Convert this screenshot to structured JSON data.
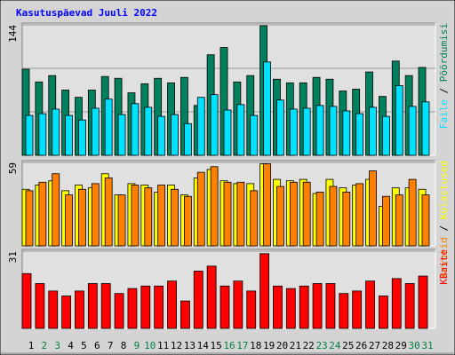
{
  "title": "Kasutuspäevad Juuli 2022",
  "chart_data": [
    {
      "type": "bar",
      "ylim": [
        0,
        144
      ],
      "yticks": [
        144
      ],
      "series": [
        {
          "name": "Pöördumisi",
          "color": "#00805c",
          "values": [
            95,
            81,
            88,
            72,
            64,
            72,
            87,
            85,
            69,
            79,
            85,
            80,
            86,
            55,
            111,
            119,
            81,
            88,
            143,
            84,
            80,
            80,
            86,
            84,
            71,
            73,
            92,
            65,
            104,
            88,
            97
          ]
        },
        {
          "name": "Faile",
          "color": "#00e0ff",
          "values": [
            44,
            46,
            51,
            44,
            39,
            52,
            62,
            45,
            57,
            53,
            43,
            45,
            35,
            64,
            67,
            50,
            56,
            44,
            103,
            61,
            51,
            52,
            55,
            54,
            49,
            46,
            53,
            43,
            77,
            54,
            59
          ]
        }
      ]
    },
    {
      "type": "bar",
      "ylim": [
        0,
        59
      ],
      "yticks": [
        59
      ],
      "series": [
        {
          "name": "Külastused",
          "color": "#ffff00",
          "values": [
            40,
            43,
            46,
            39,
            43,
            41,
            51,
            36,
            44,
            43,
            38,
            43,
            36,
            48,
            54,
            46,
            44,
            44,
            58,
            47,
            46,
            47,
            37,
            47,
            41,
            43,
            47,
            28,
            41,
            41,
            40
          ]
        },
        {
          "name": "Arvutid",
          "color": "#ff8000",
          "values": [
            39,
            45,
            51,
            36,
            40,
            44,
            48,
            36,
            43,
            41,
            43,
            40,
            35,
            52,
            56,
            45,
            45,
            39,
            58,
            42,
            45,
            45,
            38,
            42,
            38,
            44,
            53,
            35,
            36,
            47,
            36
          ]
        }
      ]
    },
    {
      "type": "bar",
      "ylim": [
        0,
        31
      ],
      "yticks": [
        31
      ],
      "categories": [
        "1",
        "2",
        "3",
        "4",
        "5",
        "6",
        "7",
        "8",
        "9",
        "10",
        "11",
        "12",
        "13",
        "14",
        "15",
        "16",
        "17",
        "18",
        "19",
        "20",
        "21",
        "22",
        "23",
        "24",
        "25",
        "26",
        "27",
        "28",
        "29",
        "30",
        "31"
      ],
      "weekend_color": "#008040",
      "weekend": [
        false,
        true,
        true,
        false,
        false,
        false,
        false,
        false,
        true,
        true,
        false,
        false,
        false,
        false,
        false,
        true,
        true,
        false,
        false,
        false,
        false,
        false,
        true,
        true,
        false,
        false,
        false,
        false,
        false,
        true,
        true
      ],
      "series": [
        {
          "name": "KBaite",
          "color": "#ff0000",
          "values": [
            22,
            18,
            15,
            13,
            15,
            18,
            18,
            14,
            16,
            17,
            17,
            19,
            11,
            23,
            25,
            17,
            19,
            15,
            30,
            17,
            16,
            17,
            18,
            18,
            14,
            15,
            19,
            13,
            20,
            18,
            21
          ]
        }
      ]
    }
  ]
}
